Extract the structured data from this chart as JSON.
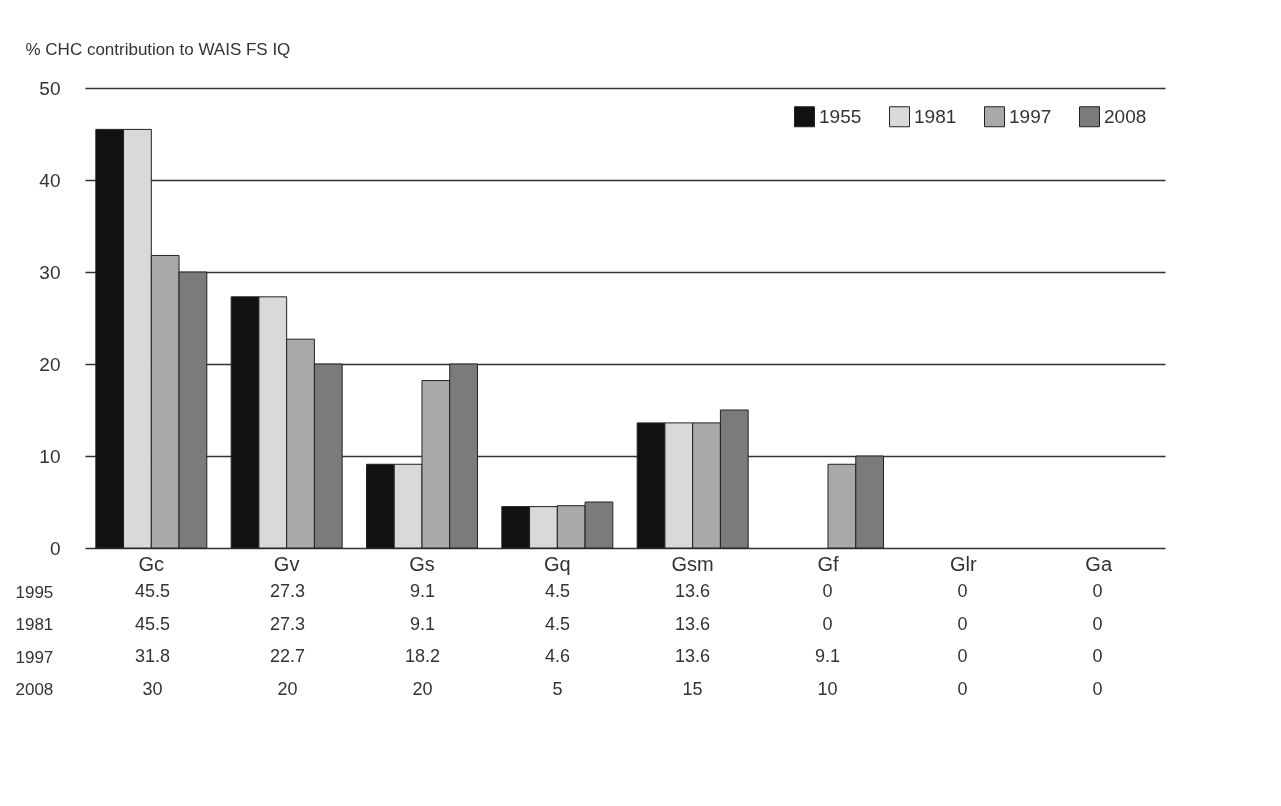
{
  "chart_data": {
    "type": "bar",
    "ylabel": "% CHC contribution to WAIS FS IQ",
    "categories": [
      "Gc",
      "Gv",
      "Gs",
      "Gq",
      "Gsm",
      "Gf",
      "Glr",
      "Ga"
    ],
    "series": [
      {
        "name": "1955",
        "color": "#111111",
        "values": [
          45.5,
          27.3,
          9.1,
          4.5,
          13.6,
          0,
          0,
          0
        ]
      },
      {
        "name": "1981",
        "color": "#d9d9d9",
        "values": [
          45.5,
          27.3,
          9.1,
          4.5,
          13.6,
          0,
          0,
          0
        ]
      },
      {
        "name": "1997",
        "color": "#a9a9a9",
        "values": [
          31.8,
          22.7,
          18.2,
          4.6,
          13.6,
          9.1,
          0,
          0
        ]
      },
      {
        "name": "2008",
        "color": "#7b7b7b",
        "values": [
          30,
          20,
          20,
          5,
          15,
          10,
          0,
          0
        ]
      }
    ],
    "ylim": [
      0,
      50
    ],
    "yticks": [
      0,
      10,
      20,
      30,
      40,
      50
    ],
    "grid": "y",
    "legend": "top right",
    "data_labels": true,
    "annotations": [
      "1995",
      "1981",
      "1997",
      "2008"
    ]
  }
}
